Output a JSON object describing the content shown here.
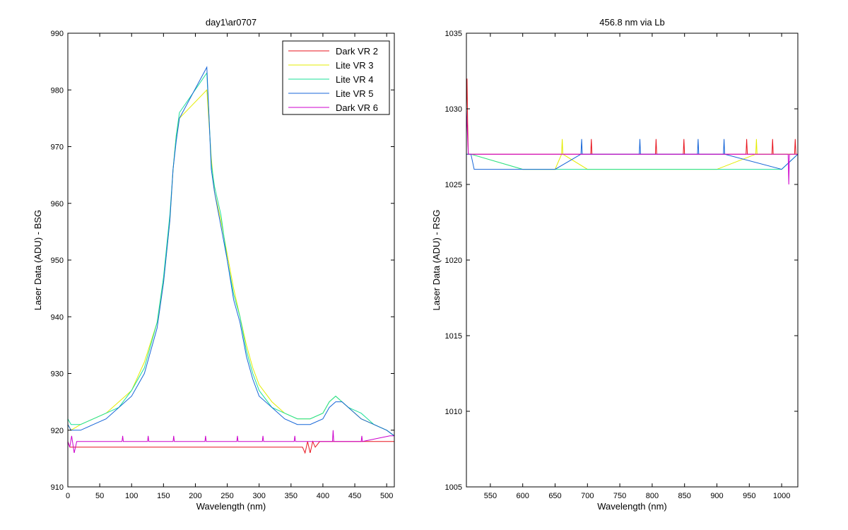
{
  "chart_data": [
    {
      "type": "line",
      "title": "day1\\ar0707",
      "xlabel": "Wavelength (nm)",
      "ylabel": "Laser Data (ADU) - BSG",
      "xlim": [
        0,
        512
      ],
      "ylim": [
        910,
        990
      ],
      "xticks": [
        0,
        50,
        100,
        150,
        200,
        250,
        300,
        350,
        400,
        450,
        500
      ],
      "yticks": [
        910,
        920,
        930,
        940,
        950,
        960,
        970,
        980,
        990
      ],
      "grid": false,
      "legend": {
        "placement": "top-right"
      },
      "series": [
        {
          "name": "Dark VR 2",
          "color": "#e8141e",
          "x": [
            0,
            3,
            6,
            10,
            14,
            18,
            25,
            360,
            368,
            372,
            376,
            380,
            384,
            388,
            395,
            512
          ],
          "y": [
            918,
            917,
            917,
            917,
            917,
            917,
            917,
            917,
            917,
            916,
            918,
            916,
            918,
            917,
            918,
            918
          ]
        },
        {
          "name": "Lite VR 3",
          "color": "#e3ec00",
          "x": [
            0,
            5,
            20,
            40,
            60,
            80,
            100,
            120,
            140,
            150,
            160,
            165,
            170,
            175,
            218,
            225,
            230,
            240,
            250,
            260,
            270,
            280,
            290,
            300,
            320,
            340,
            360,
            380,
            400,
            410,
            420,
            430,
            440,
            460,
            480,
            500,
            512
          ],
          "y": [
            921,
            920,
            921,
            922,
            923,
            925,
            927,
            932,
            939,
            946,
            957,
            966,
            972,
            975,
            980,
            968,
            962,
            957,
            951,
            945,
            940,
            935,
            931,
            928,
            925,
            923,
            922,
            922,
            923,
            925,
            926,
            925,
            924,
            922,
            921,
            920,
            919
          ]
        },
        {
          "name": "Lite VR 4",
          "color": "#1be09a",
          "x": [
            0,
            5,
            20,
            40,
            60,
            80,
            100,
            120,
            140,
            150,
            160,
            165,
            170,
            175,
            218,
            225,
            230,
            240,
            250,
            260,
            270,
            280,
            290,
            300,
            320,
            340,
            360,
            380,
            400,
            410,
            420,
            430,
            440,
            460,
            480,
            500,
            512
          ],
          "y": [
            922,
            921,
            921,
            922,
            923,
            924,
            927,
            931,
            939,
            947,
            958,
            966,
            972,
            976,
            983,
            967,
            963,
            958,
            950,
            944,
            940,
            934,
            930,
            927,
            924,
            923,
            922,
            922,
            923,
            925,
            926,
            925,
            924,
            923,
            921,
            920,
            919
          ]
        },
        {
          "name": "Lite VR 5",
          "color": "#1766d8",
          "x": [
            0,
            5,
            20,
            40,
            60,
            80,
            100,
            120,
            140,
            150,
            160,
            165,
            170,
            175,
            218,
            225,
            230,
            240,
            250,
            260,
            270,
            280,
            290,
            300,
            320,
            340,
            360,
            380,
            400,
            410,
            420,
            430,
            440,
            460,
            480,
            500,
            512
          ],
          "y": [
            921,
            920,
            920,
            921,
            922,
            924,
            926,
            930,
            938,
            946,
            957,
            966,
            971,
            975,
            984,
            966,
            962,
            956,
            950,
            943,
            939,
            933,
            929,
            926,
            924,
            922,
            921,
            921,
            922,
            924,
            925,
            925,
            924,
            922,
            921,
            920,
            919
          ]
        },
        {
          "name": "Dark VR 6",
          "color": "#cc00cc",
          "x": [
            0,
            3,
            6,
            10,
            14,
            18,
            85,
            86,
            87,
            125,
            126,
            127,
            165,
            166,
            167,
            215,
            216,
            217,
            265,
            266,
            267,
            305,
            306,
            307,
            355,
            356,
            357,
            415,
            416,
            417,
            460,
            461,
            462,
            505,
            512
          ],
          "y": [
            918,
            917,
            919,
            916,
            918,
            918,
            918,
            919,
            918,
            918,
            919,
            918,
            918,
            919,
            918,
            918,
            919,
            918,
            918,
            919,
            918,
            918,
            919,
            918,
            918,
            919,
            918,
            918,
            920,
            918,
            918,
            919,
            918,
            919,
            919
          ]
        }
      ]
    },
    {
      "type": "line",
      "title": "456.8 nm via Lb",
      "xlabel": "Wavelength (nm)",
      "ylabel": "Laser Data (ADU) - RSG",
      "xlim": [
        513,
        1025
      ],
      "ylim": [
        1005,
        1035
      ],
      "xticks": [
        550,
        600,
        650,
        700,
        750,
        800,
        850,
        900,
        950,
        1000
      ],
      "yticks": [
        1005,
        1010,
        1015,
        1020,
        1025,
        1030,
        1035
      ],
      "grid": false,
      "series": [
        {
          "name": "Dark VR 2",
          "color": "#e8141e",
          "x": [
            513,
            514,
            515,
            516,
            518,
            520,
            705,
            706,
            707,
            805,
            806,
            807,
            848,
            849,
            850,
            945,
            946,
            947,
            985,
            986,
            987,
            1020,
            1021,
            1022,
            1025
          ],
          "y": [
            1030,
            1032,
            1029,
            1027,
            1027,
            1027,
            1027,
            1028,
            1027,
            1027,
            1028,
            1027,
            1027,
            1028,
            1027,
            1027,
            1028,
            1027,
            1027,
            1028,
            1027,
            1027,
            1028,
            1027,
            1027
          ]
        },
        {
          "name": "Lite VR 3",
          "color": "#e3ec00",
          "x": [
            513,
            520,
            600,
            650,
            660,
            661,
            662,
            700,
            750,
            800,
            850,
            900,
            960,
            961,
            962,
            1025
          ],
          "y": [
            1027,
            1027,
            1026,
            1026,
            1027,
            1028,
            1027,
            1026,
            1026,
            1026,
            1026,
            1026,
            1027,
            1028,
            1027,
            1027
          ]
        },
        {
          "name": "Lite VR 4",
          "color": "#1be09a",
          "x": [
            513,
            520,
            600,
            650,
            700,
            750,
            800,
            850,
            900,
            950,
            1000,
            1025
          ],
          "y": [
            1027,
            1027,
            1026,
            1026,
            1026,
            1026,
            1026,
            1026,
            1026,
            1026,
            1026,
            1027
          ]
        },
        {
          "name": "Lite VR 5",
          "color": "#1766d8",
          "x": [
            513,
            520,
            525,
            600,
            650,
            690,
            691,
            692,
            780,
            781,
            782,
            870,
            871,
            872,
            910,
            911,
            912,
            1000,
            1025
          ],
          "y": [
            1027,
            1027,
            1026,
            1026,
            1026,
            1027,
            1028,
            1027,
            1027,
            1028,
            1027,
            1027,
            1028,
            1027,
            1027,
            1028,
            1027,
            1026,
            1027
          ]
        },
        {
          "name": "Dark VR 6",
          "color": "#cc00cc",
          "x": [
            513,
            514,
            515,
            516,
            518,
            520,
            1010,
            1011,
            1012,
            1013,
            1025
          ],
          "y": [
            1030,
            1029,
            1028,
            1027,
            1027,
            1027,
            1027,
            1025,
            1027,
            1027,
            1027
          ]
        }
      ]
    }
  ]
}
